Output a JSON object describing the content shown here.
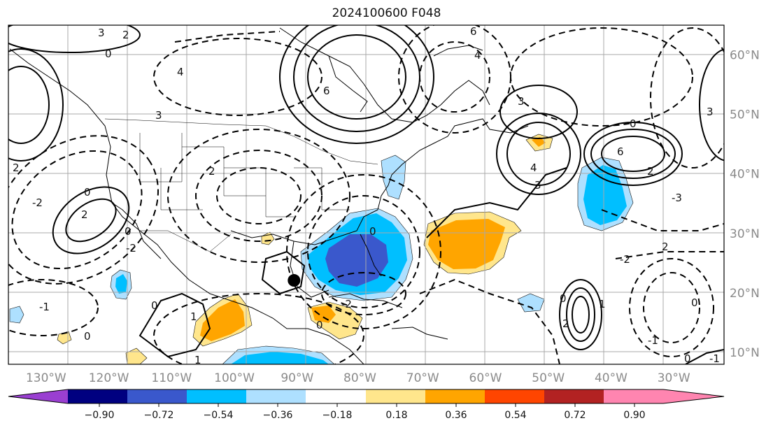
{
  "title": "2024100600 F048",
  "map": {
    "lon_range": [
      -136,
      -22
    ],
    "lat_range": [
      8,
      65
    ],
    "gridlines": true,
    "marker": {
      "lon": -90.5,
      "lat": 22.1
    }
  },
  "lon_labels": [
    "130°W",
    "120°W",
    "110°W",
    "100°W",
    "90°W",
    "80°W",
    "70°W",
    "60°W",
    "50°W",
    "40°W",
    "30°W"
  ],
  "lon_values": [
    -130,
    -120,
    -110,
    -100,
    -90,
    -80,
    -70,
    -60,
    -50,
    -40,
    -30
  ],
  "lat_labels": [
    "60°N",
    "50°N",
    "40°N",
    "30°N",
    "20°N",
    "10°N"
  ],
  "lat_values": [
    60,
    50,
    40,
    30,
    20,
    10
  ],
  "contour_labels": [
    "3",
    "2",
    "0",
    "4",
    "6",
    "3",
    "4",
    "6",
    "3",
    "4",
    "3",
    "2",
    "2",
    "0",
    "2",
    "-2",
    "0",
    "-2",
    "0",
    "1",
    "0",
    "-1",
    "0",
    "-2",
    "0",
    "6",
    "2",
    "-3",
    "3",
    "0",
    "-2",
    "2",
    "0",
    "2",
    "-1",
    "0",
    "1",
    "0",
    "-1",
    "1"
  ],
  "colorbar": {
    "ticks": [
      "−0.90",
      "−0.72",
      "−0.54",
      "−0.36",
      "−0.18",
      "0.18",
      "0.36",
      "0.54",
      "0.72",
      "0.90"
    ],
    "colors": [
      "#9a3fd1",
      "#000080",
      "#3a58cc",
      "#00bfff",
      "#aee0ff",
      "#ffffff",
      "#ffe68c",
      "#ffa500",
      "#ff4500",
      "#b22222",
      "#ff85b0"
    ]
  }
}
